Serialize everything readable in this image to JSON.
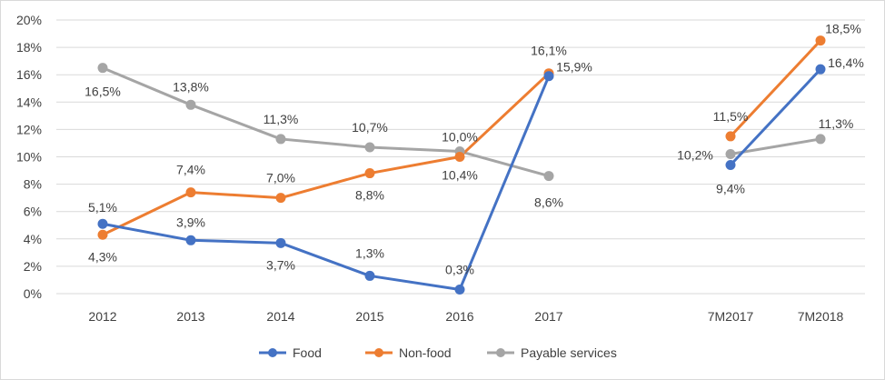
{
  "chart_data": {
    "type": "line",
    "title": "",
    "xlabel": "",
    "ylabel": "",
    "categories": [
      "2012",
      "2013",
      "2014",
      "2015",
      "2016",
      "2017",
      "7M2017",
      "7M2018"
    ],
    "ylim": [
      0,
      20
    ],
    "yticks": [
      "0%",
      "2%",
      "4%",
      "6%",
      "8%",
      "10%",
      "12%",
      "14%",
      "16%",
      "18%",
      "20%"
    ],
    "grid": true,
    "legend_position": "bottom",
    "series": [
      {
        "name": "Food",
        "color": "#4472C4",
        "segments": [
          [
            0,
            5
          ],
          [
            6,
            7
          ]
        ],
        "values": [
          5.1,
          3.9,
          3.7,
          1.3,
          0.3,
          15.9,
          9.4,
          16.4
        ],
        "labels": [
          "5,1%",
          "3,9%",
          "3,7%",
          "1,3%",
          "0,3%",
          "15,9%",
          "9,4%",
          "16,4%"
        ]
      },
      {
        "name": "Non-food",
        "color": "#ED7D31",
        "segments": [
          [
            0,
            5
          ],
          [
            6,
            7
          ]
        ],
        "values": [
          4.3,
          7.4,
          7.0,
          8.8,
          10.0,
          16.1,
          11.5,
          18.5
        ],
        "labels": [
          "4,3%",
          "7,4%",
          "7,0%",
          "8,8%",
          "10,0%",
          "16,1%",
          "11,5%",
          "18,5%"
        ]
      },
      {
        "name": "Payable services",
        "color": "#A5A5A5",
        "segments": [
          [
            0,
            5
          ],
          [
            6,
            7
          ]
        ],
        "values": [
          16.5,
          13.8,
          11.3,
          10.7,
          10.4,
          8.6,
          10.2,
          11.3
        ],
        "labels": [
          "16,5%",
          "13,8%",
          "11,3%",
          "10,7%",
          "10,4%",
          "8,6%",
          "10,2%",
          "11,3%"
        ]
      }
    ]
  }
}
